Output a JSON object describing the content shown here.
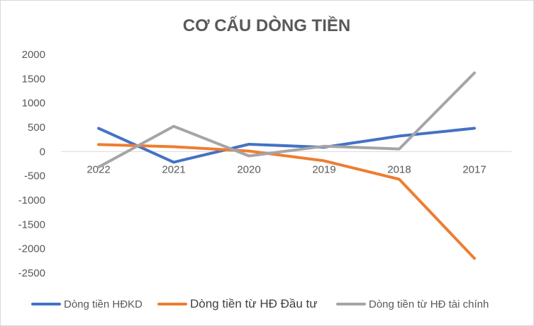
{
  "chart_data": {
    "type": "line",
    "title": "CƠ CẤU DÒNG TIỀN",
    "categories": [
      "2022",
      "2021",
      "2020",
      "2019",
      "2018",
      "2017"
    ],
    "ylim": [
      -2500,
      2000
    ],
    "yticks": [
      "2000",
      "1500",
      "1000",
      "500",
      "0",
      "-500",
      "-1000",
      "-1500",
      "-2000",
      "-2500"
    ],
    "grid": false,
    "legend_position": "bottom",
    "series": [
      {
        "name": "Dòng tiền HĐKD",
        "color": "#4472C4",
        "values": [
          480,
          -220,
          150,
          90,
          320,
          480
        ]
      },
      {
        "name": "Dòng tiền từ HĐ Đầu tư",
        "color": "#ED7D31",
        "values": [
          145,
          100,
          10,
          -190,
          -570,
          -2200
        ]
      },
      {
        "name": "Dòng tiền từ HĐ tài chính",
        "color": "#A5A5A5",
        "values": [
          -320,
          520,
          -90,
          110,
          55,
          1620
        ]
      }
    ]
  }
}
